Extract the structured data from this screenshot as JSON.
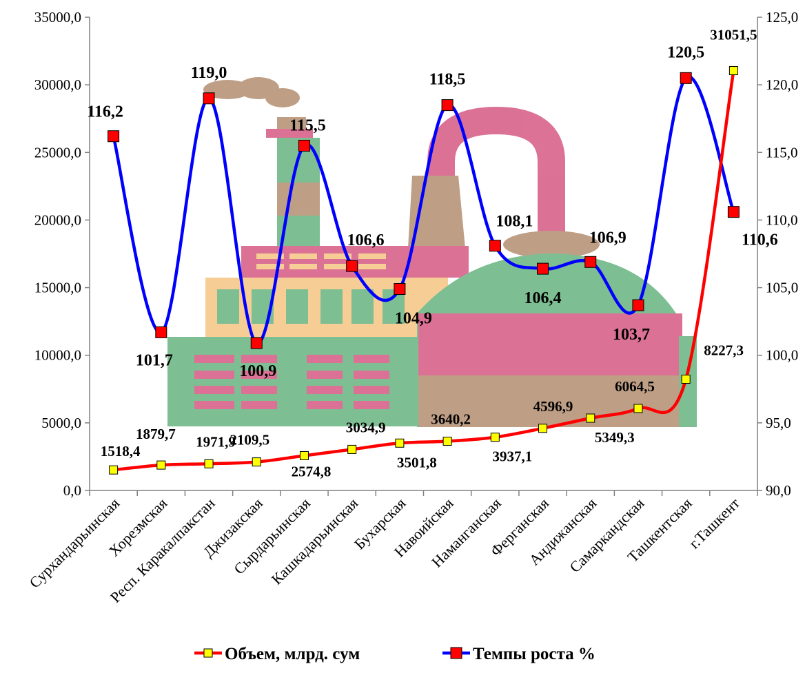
{
  "chart_data": {
    "type": "line",
    "categories": [
      "Сурхандарьинская",
      "Хорезмская",
      "Респ. Каракалпакстан",
      "Джизакская",
      "Сырдарьинская",
      "Кашкадарьинская",
      "Бухарская",
      "Навоийская",
      "Наманганская",
      "Ферганская",
      "Андижанская",
      "Самаркандская",
      "Ташкентская",
      "г.Ташкент"
    ],
    "series": [
      {
        "name": "Объем, млрд. сум",
        "axis": "left",
        "color": "#ff0000",
        "marker_color": "#ffff00",
        "values": [
          1518.4,
          1879.7,
          1971.9,
          2109.5,
          2574.8,
          3034.9,
          3501.8,
          3640.2,
          3937.1,
          4596.9,
          5349.3,
          6064.5,
          8227.3,
          31051.5
        ],
        "labels": [
          "1518,4",
          "1879,7",
          "1971,9",
          "2109,5",
          "2574,8",
          "3034,9",
          "3501,8",
          "3640,2",
          "3937,1",
          "4596,9",
          "5349,3",
          "6064,5",
          "8227,3",
          "31051,5"
        ]
      },
      {
        "name": "Темпы роста %",
        "axis": "right",
        "color": "#0000ff",
        "marker_color": "#ff0000",
        "values": [
          116.2,
          101.7,
          119.0,
          100.9,
          115.5,
          106.6,
          104.9,
          118.5,
          108.1,
          106.4,
          106.9,
          103.7,
          120.5,
          110.6
        ],
        "labels": [
          "116,2",
          "101,7",
          "119,0",
          "100,9",
          "115,5",
          "106,6",
          "104,9",
          "118,5",
          "108,1",
          "106,4",
          "106,9",
          "103,7",
          "120,5",
          "110,6"
        ]
      }
    ],
    "y_left": {
      "range": [
        0,
        35000
      ],
      "ticks": [
        "0,0",
        "5000,0",
        "10000,0",
        "15000,0",
        "20000,0",
        "25000,0",
        "30000,0",
        "35000,0"
      ]
    },
    "y_right": {
      "range": [
        90,
        125
      ],
      "ticks": [
        "90,0",
        "95,0",
        "100,0",
        "105,0",
        "110,0",
        "115,0",
        "120,0",
        "125,0"
      ]
    },
    "legend_position": "bottom",
    "background": "factory illustration"
  }
}
